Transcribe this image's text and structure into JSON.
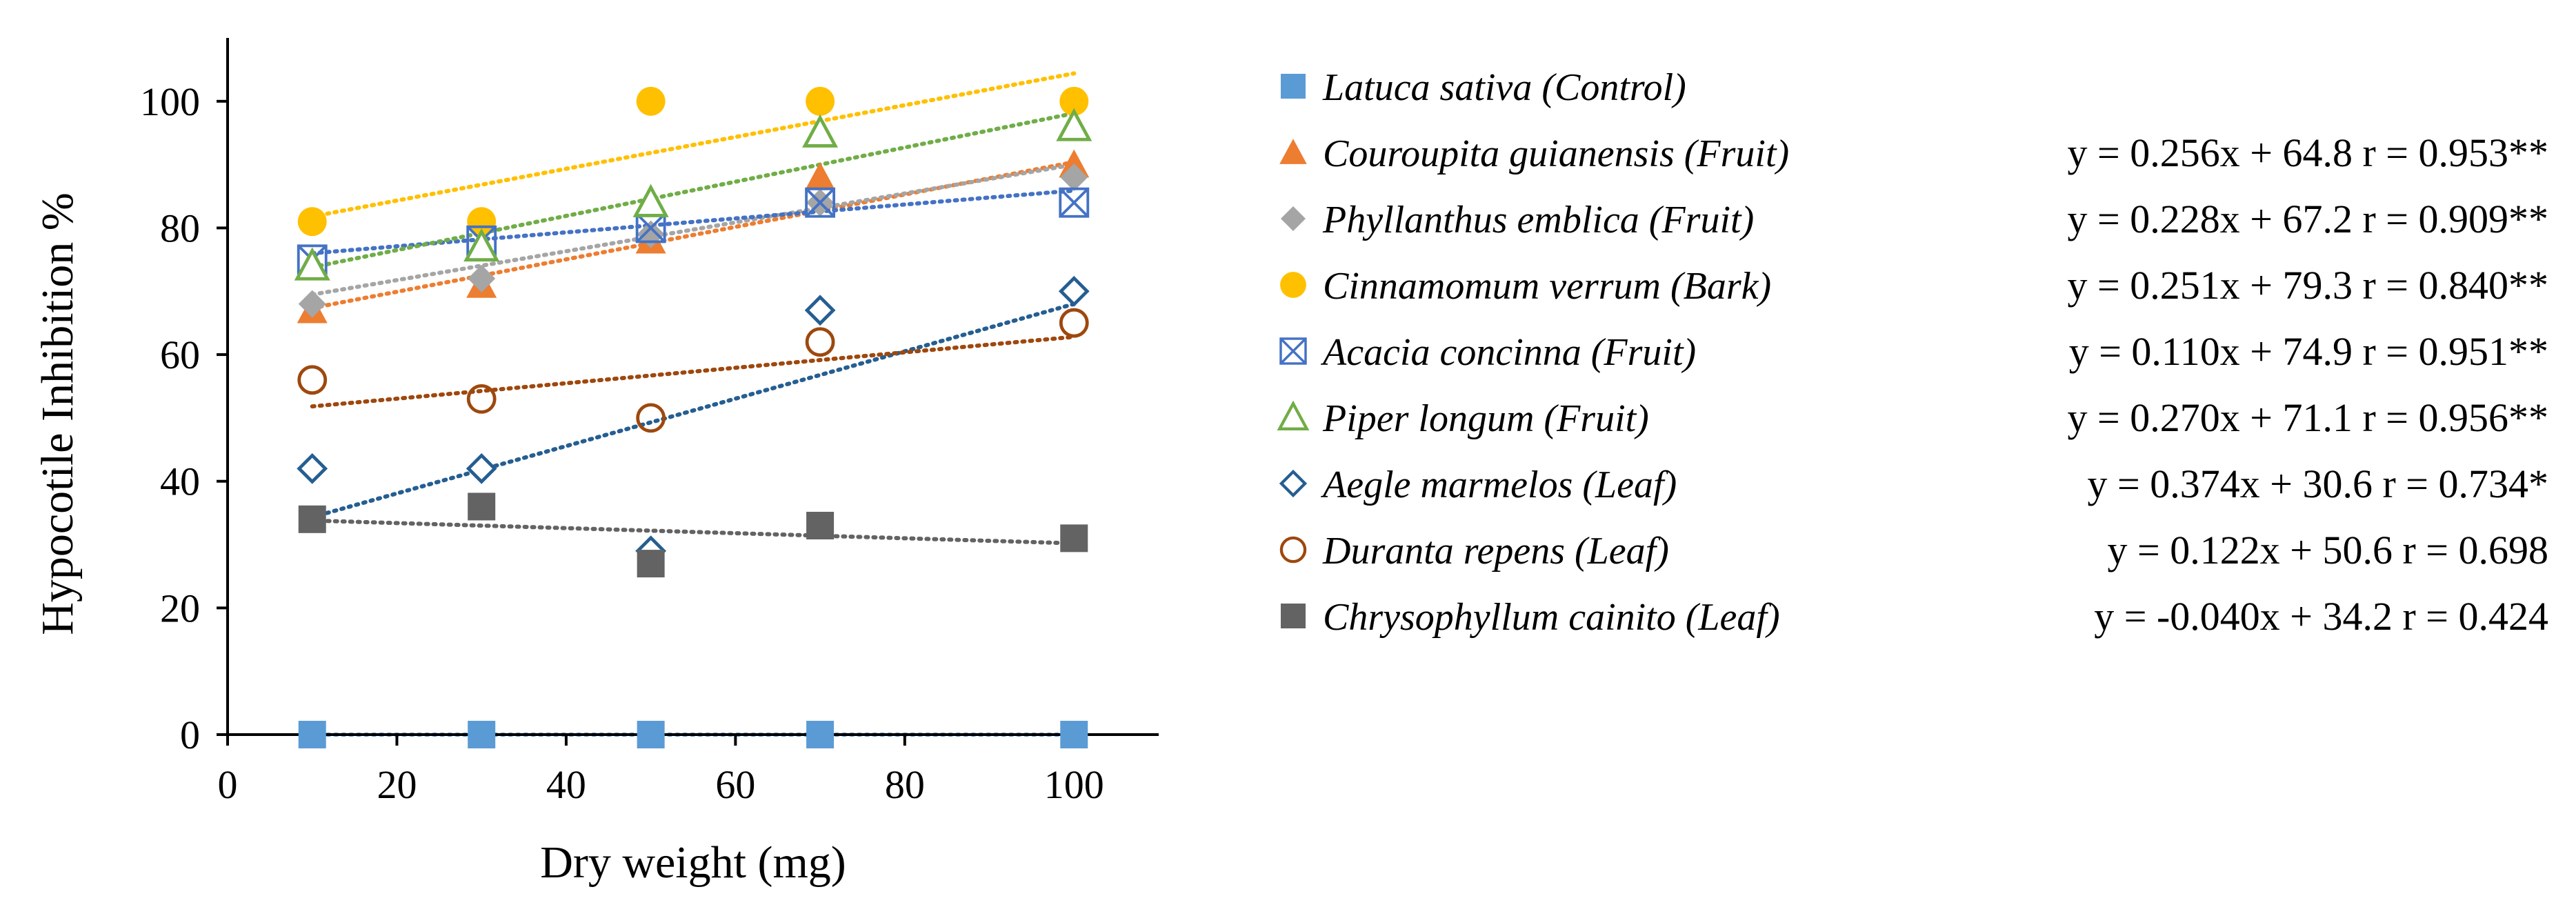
{
  "chart_data": {
    "type": "scatter",
    "xlabel": "Dry weight (mg)",
    "ylabel": "Hypocotile Inhibition %",
    "xlim": [
      0,
      110
    ],
    "ylim": [
      0,
      110
    ],
    "xticks": [
      0,
      20,
      40,
      60,
      80,
      100
    ],
    "yticks": [
      0,
      20,
      40,
      60,
      80,
      100
    ],
    "grid": false,
    "legend_position": "right",
    "series": [
      {
        "name": "Latuca sativa (Control)",
        "marker": "square",
        "color": "#5b9bd5",
        "fill": true,
        "x": [
          10,
          30,
          50,
          70,
          100
        ],
        "y": [
          0,
          0,
          0,
          0,
          0
        ],
        "trend": {
          "slope": 0,
          "intercept": 0
        },
        "equation": ""
      },
      {
        "name": "Couroupita guianensis (Fruit)",
        "marker": "triangle",
        "color": "#ed7d31",
        "fill": true,
        "x": [
          10,
          30,
          50,
          70,
          100
        ],
        "y": [
          67,
          71,
          78,
          88,
          90
        ],
        "trend": {
          "slope": 0.256,
          "intercept": 64.8
        },
        "equation": "y = 0.256x + 64.8 r = 0.953**"
      },
      {
        "name": "Phyllanthus emblica (Fruit)",
        "marker": "diamond",
        "color": "#a5a5a5",
        "fill": true,
        "x": [
          10,
          30,
          50,
          70,
          100
        ],
        "y": [
          68,
          72,
          79,
          84,
          88
        ],
        "trend": {
          "slope": 0.228,
          "intercept": 67.2
        },
        "equation": "y = 0.228x + 67.2 r = 0.909**"
      },
      {
        "name": "Cinnamomum verrum (Bark)",
        "marker": "circle",
        "color": "#ffc000",
        "fill": true,
        "x": [
          10,
          30,
          50,
          70,
          100
        ],
        "y": [
          81,
          81,
          100,
          100,
          100
        ],
        "trend": {
          "slope": 0.251,
          "intercept": 79.3
        },
        "equation": "y = 0.251x + 79.3 r = 0.840**"
      },
      {
        "name": "Acacia concinna (Fruit)",
        "marker": "crossed-square",
        "color": "#4472c4",
        "fill": false,
        "x": [
          10,
          30,
          50,
          70,
          100
        ],
        "y": [
          75,
          78,
          80,
          84,
          84
        ],
        "trend": {
          "slope": 0.11,
          "intercept": 74.9
        },
        "equation": "y = 0.110x + 74.9 r = 0.951**"
      },
      {
        "name": "Piper longum (Fruit)",
        "marker": "open-triangle",
        "color": "#70ad47",
        "fill": false,
        "x": [
          10,
          30,
          50,
          70,
          100
        ],
        "y": [
          74,
          77,
          84,
          95,
          96
        ],
        "trend": {
          "slope": 0.27,
          "intercept": 71.1
        },
        "equation": "y = 0.270x + 71.1 r = 0.956**"
      },
      {
        "name": "Aegle marmelos (Leaf)",
        "marker": "open-diamond",
        "color": "#255e91",
        "fill": false,
        "x": [
          10,
          30,
          50,
          70,
          100
        ],
        "y": [
          42,
          42,
          29,
          67,
          70
        ],
        "trend": {
          "slope": 0.374,
          "intercept": 30.6
        },
        "equation": "y = 0.374x + 30.6 r = 0.734*"
      },
      {
        "name": "Duranta repens (Leaf)",
        "marker": "open-circle",
        "color": "#9e480e",
        "fill": false,
        "x": [
          10,
          30,
          50,
          70,
          100
        ],
        "y": [
          56,
          53,
          50,
          62,
          65
        ],
        "trend": {
          "slope": 0.122,
          "intercept": 50.6
        },
        "equation": "y = 0.122x + 50.6 r = 0.698"
      },
      {
        "name": "Chrysophyllum cainito (Leaf)",
        "marker": "square",
        "color": "#636363",
        "fill": true,
        "x": [
          10,
          30,
          50,
          70,
          100
        ],
        "y": [
          34,
          36,
          27,
          33,
          31
        ],
        "trend": {
          "slope": -0.04,
          "intercept": 34.2
        },
        "equation": "y = -0.040x + 34.2 r = 0.424"
      }
    ]
  }
}
